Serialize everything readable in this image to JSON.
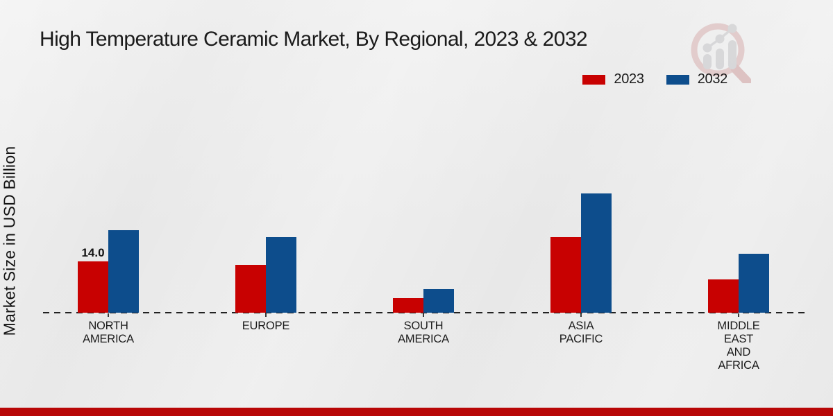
{
  "title": "High Temperature Ceramic Market, By Regional, 2023 & 2032",
  "ylabel": "Market Size in USD Billion",
  "legend": [
    {
      "label": "2023",
      "color": "#c80101"
    },
    {
      "label": "2032",
      "color": "#0d4d8c"
    }
  ],
  "colors": {
    "bar_2023": "#c80101",
    "bar_2032": "#0d4d8c",
    "bottom_strip": "#b80707",
    "axis_dash": "#222222",
    "text": "#1a1a1a",
    "background": "#e9e9e9",
    "logo_ring": "#d8b0b0",
    "logo_gray": "#c5c5c8"
  },
  "icons": {
    "logo": "magnifier-bar-chart-logo"
  },
  "chart_data": {
    "type": "bar",
    "categories": [
      "NORTH AMERICA",
      "EUROPE",
      "SOUTH AMERICA",
      "ASIA PACIFIC",
      "MIDDLE EAST AND AFRICA"
    ],
    "category_display_lines": [
      [
        "NORTH",
        "AMERICA"
      ],
      [
        "EUROPE"
      ],
      [
        "SOUTH",
        "AMERICA"
      ],
      [
        "ASIA",
        "PACIFIC"
      ],
      [
        "MIDDLE",
        "EAST",
        "AND",
        "AFRICA"
      ]
    ],
    "series": [
      {
        "name": "2023",
        "color": "#c80101",
        "values": [
          14.0,
          13.0,
          4.0,
          20.5,
          9.0
        ]
      },
      {
        "name": "2032",
        "color": "#0d4d8c",
        "values": [
          22.5,
          20.5,
          6.5,
          32.5,
          16.0
        ]
      }
    ],
    "value_labels": [
      {
        "series": "2023",
        "category": "NORTH AMERICA",
        "text": "14.0"
      }
    ],
    "title": "High Temperature Ceramic Market, By Regional, 2023 & 2032",
    "xlabel": "",
    "ylabel": "Market Size in USD Billion",
    "ylim": [
      0,
      35
    ],
    "grid": false,
    "baseline_style": "dashed",
    "legend_position": "top-right"
  }
}
